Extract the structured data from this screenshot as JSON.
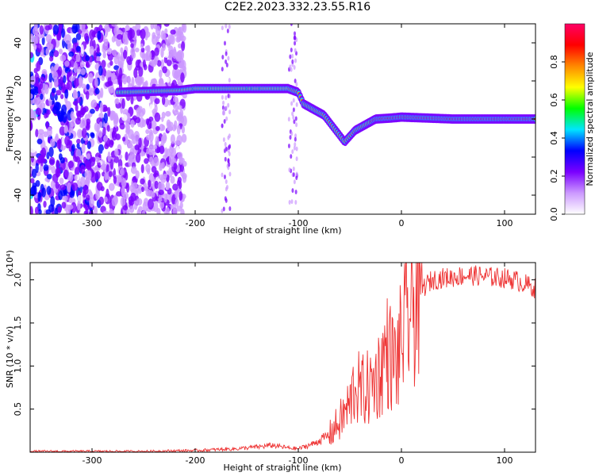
{
  "title": "C2E2.2023.332.23.55.R16",
  "chart_data": [
    {
      "type": "heatmap",
      "xlabel": "Height of straight line (km)",
      "ylabel": "Frequency (Hz)",
      "xlim": [
        -360,
        130
      ],
      "ylim": [
        -50,
        50
      ],
      "xticks": [
        -300,
        -200,
        -100,
        0,
        100
      ],
      "yticks": [
        -40,
        -20,
        0,
        20,
        40
      ],
      "colorbar": {
        "label": "Normalized spectral amplitude",
        "range": [
          0,
          1
        ],
        "ticks": [
          "0.0",
          "0.2",
          "0.4",
          "0.6",
          "0.8"
        ],
        "colors": [
          "#ffffff",
          "#cc99ff",
          "#7a00ff",
          "#0000ff",
          "#00e5ff",
          "#00ff00",
          "#ffff00",
          "#ff8800",
          "#ff0000",
          "#ff0066"
        ]
      },
      "signal_track": {
        "x": [
          -275,
          -215,
          -200,
          -150,
          -110,
          -100,
          -95,
          -85,
          -75,
          -65,
          -55,
          -45,
          -35,
          -25,
          -10,
          0,
          50,
          130
        ],
        "frequency": [
          14,
          15,
          16,
          16,
          16,
          14,
          8,
          5,
          2,
          -5,
          -12,
          -6,
          -3,
          0,
          0.5,
          1,
          0,
          0
        ]
      },
      "noise_region": {
        "x_from": -360,
        "x_to": -210
      },
      "grid": false
    },
    {
      "type": "line",
      "xlabel": "Height of straight line (km)",
      "ylabel": "SNR (10 * v/v)",
      "y_multiplier": "(x10⁴)",
      "xlim": [
        -360,
        130
      ],
      "ylim": [
        0,
        2.2
      ],
      "xticks": [
        -300,
        -200,
        -100,
        0,
        100
      ],
      "yticks": [
        "0.5",
        "1.0",
        "1.5",
        "2.0"
      ],
      "series": [
        {
          "color": "#ee3333",
          "x": [
            -360,
            -300,
            -250,
            -200,
            -180,
            -160,
            -140,
            -125,
            -110,
            -100,
            -85,
            -70,
            -60,
            -50,
            -45,
            -40,
            -30,
            -20,
            -15,
            -10,
            -5,
            0,
            5,
            10,
            15,
            20,
            25,
            30,
            40,
            50,
            60,
            70,
            80,
            90,
            100,
            110,
            120,
            130
          ],
          "values": [
            0.01,
            0.01,
            0.01,
            0.02,
            0.03,
            0.04,
            0.06,
            0.08,
            0.05,
            0.04,
            0.1,
            0.2,
            0.35,
            0.55,
            0.8,
            0.7,
            0.75,
            0.95,
            1.2,
            1.1,
            1.0,
            1.3,
            1.5,
            1.65,
            1.8,
            1.9,
            1.95,
            2.0,
            2.02,
            2.03,
            2.05,
            2.05,
            2.04,
            2.03,
            2.02,
            2.0,
            1.95,
            1.9
          ]
        }
      ],
      "grid": false
    }
  ]
}
